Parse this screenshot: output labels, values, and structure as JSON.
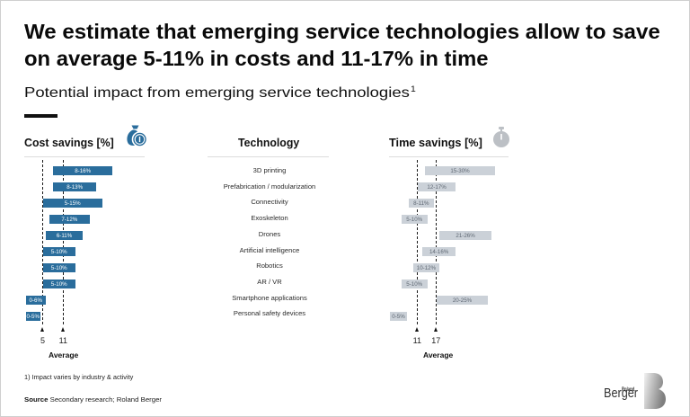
{
  "title": {
    "line1": "We estimate that emerging service technologies allow to save",
    "line2": "on average 5-11% in costs and 11-17% in time"
  },
  "subtitle": {
    "text": "Potential impact from emerging service technologies",
    "footnote_marker": "1"
  },
  "icons": {
    "cost": "money-bag-icon",
    "time": "stopwatch-icon"
  },
  "colors": {
    "cost_accent": "#2a6d9c",
    "time_accent": "#bcc0c5"
  },
  "chart_data": {
    "type": "bar",
    "orientation": "horizontal-range",
    "category_axis_title": "Technology",
    "categories": [
      "3D printing",
      "Prefabrication / modularization",
      "Connectivity",
      "Exoskeleton",
      "Drones",
      "Artificial intelligence",
      "Robotics",
      "AR / VR",
      "Smartphone applications",
      "Personal safety devices"
    ],
    "unit": "%",
    "grid": false,
    "legend": "none",
    "series": [
      {
        "name": "Cost savings [%]",
        "ranges": [
          [
            8,
            16
          ],
          [
            8,
            13
          ],
          [
            5,
            15
          ],
          [
            7,
            12
          ],
          [
            6,
            11
          ],
          [
            5,
            10
          ],
          [
            5,
            10
          ],
          [
            5,
            10
          ],
          [
            0,
            6
          ],
          [
            0,
            5
          ]
        ],
        "labels": [
          "8-16%",
          "8-13%",
          "5-15%",
          "7-12%",
          "6-11%",
          "5-10%",
          "5-10%",
          "5-10%",
          "0-6%",
          "0-5%"
        ],
        "average": [
          5,
          11
        ],
        "average_tick_labels": [
          "5",
          "11"
        ],
        "average_label": "Average",
        "color": "#2a6d9c",
        "label_color": "#ffffff"
      },
      {
        "name": "Time savings [%]",
        "ranges": [
          [
            15,
            30
          ],
          [
            12,
            17
          ],
          [
            8,
            11
          ],
          [
            5,
            10
          ],
          [
            21,
            26
          ],
          [
            14,
            16
          ],
          [
            10,
            12
          ],
          [
            5,
            10
          ],
          [
            20,
            25
          ],
          [
            0,
            5
          ]
        ],
        "labels": [
          "15-30%",
          "12-17%",
          "8-11%",
          "5-10%",
          "21-26%",
          "14-16%",
          "10-12%",
          "5-10%",
          "20-25%",
          "0-5%"
        ],
        "average": [
          11,
          17
        ],
        "average_tick_labels": [
          "11",
          "17"
        ],
        "average_label": "Average",
        "color": "#cbd1d8",
        "label_color": "#5f6873"
      }
    ]
  },
  "footnote": "1) Impact varies by industry & activity",
  "source": {
    "label": "Source",
    "text": "Secondary research; Roland Berger"
  },
  "logo": {
    "small": "Roland",
    "large": "Berger"
  }
}
